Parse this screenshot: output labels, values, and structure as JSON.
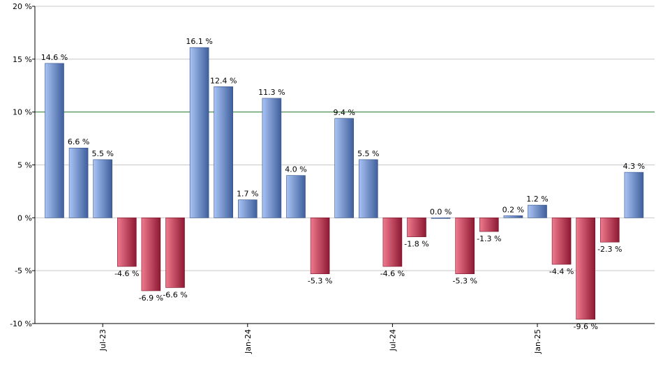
{
  "chart_data": {
    "type": "bar",
    "title": "",
    "xlabel": "",
    "ylabel": "",
    "ylim": [
      -10,
      20
    ],
    "y_ticks": [
      -10,
      -5,
      0,
      5,
      10,
      15,
      20
    ],
    "y_tick_labels": [
      "-10 %",
      "-5 %",
      "0 %",
      "5 %",
      "10 %",
      "15 %",
      "20 %"
    ],
    "x_tick_labels": [
      {
        "label": "Jul-23",
        "index": 2
      },
      {
        "label": "Jan-24",
        "index": 8
      },
      {
        "label": "Jul-24",
        "index": 14
      },
      {
        "label": "Jan-25",
        "index": 20
      }
    ],
    "values": [
      14.6,
      6.6,
      5.5,
      -4.6,
      -6.9,
      -6.6,
      16.1,
      12.4,
      1.7,
      11.3,
      4.0,
      -5.3,
      9.4,
      5.5,
      -4.6,
      -1.8,
      0.0,
      -5.3,
      -1.3,
      0.2,
      1.2,
      -4.4,
      -9.6,
      -2.3,
      4.3
    ],
    "data_labels": [
      "14.6 %",
      "6.6 %",
      "5.5 %",
      "-4.6 %",
      "-6.9 %",
      "-6.6 %",
      "16.1 %",
      "12.4 %",
      "1.7 %",
      "11.3 %",
      "4.0 %",
      "-5.3 %",
      "9.4 %",
      "5.5 %",
      "-4.6 %",
      "-1.8 %",
      "0.0 %",
      "-5.3 %",
      "-1.3 %",
      "0.2 %",
      "1.2 %",
      "-4.4 %",
      "-9.6 %",
      "-2.3 %",
      "4.3 %"
    ],
    "reference_line": 10,
    "grid": true,
    "colors": {
      "positive_light": "#a9c4f5",
      "positive_dark": "#3f5f9c",
      "negative_light": "#f07a8e",
      "negative_dark": "#8c1832",
      "reference_line": "#2e7d32",
      "grid": "#c8c8c8",
      "axis": "#000000"
    }
  }
}
